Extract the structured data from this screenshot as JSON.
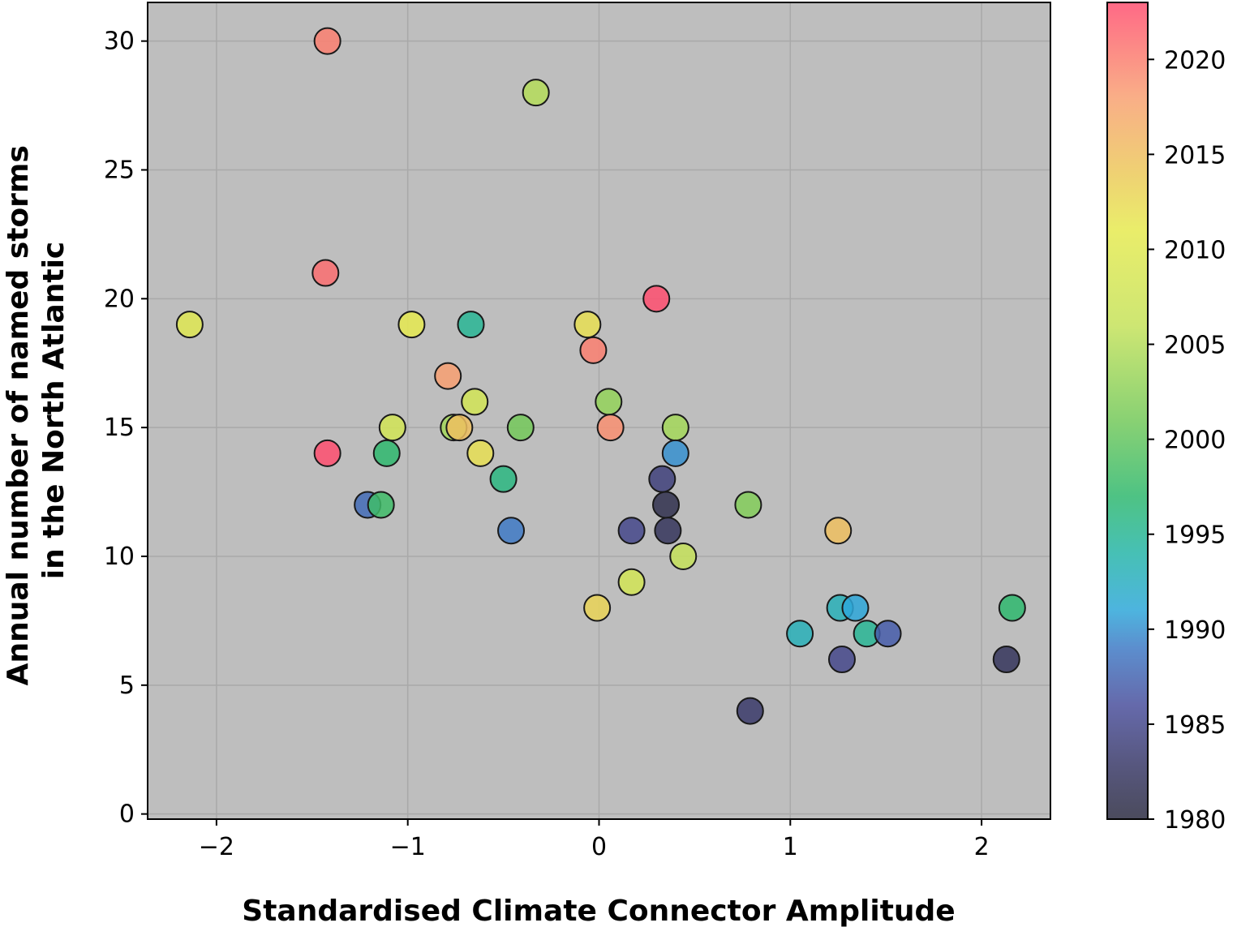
{
  "chart_data": {
    "type": "scatter",
    "xlabel": "Standardised Climate Connector Amplitude",
    "ylabel_lines": [
      "Annual number of named storms",
      "in the North Atlantic"
    ],
    "xlim": [
      -2.36,
      2.36
    ],
    "ylim": [
      -0.2,
      31.5
    ],
    "xticks": [
      -2,
      -1,
      0,
      1,
      2
    ],
    "xtick_labels": [
      "−2",
      "−1",
      "0",
      "1",
      "2"
    ],
    "yticks": [
      0,
      5,
      10,
      15,
      20,
      25,
      30
    ],
    "ytick_labels": [
      "0",
      "5",
      "10",
      "15",
      "20",
      "25",
      "30"
    ],
    "grid": true,
    "plot_background": "#bebebe",
    "gridline_color": "#a9a9a9",
    "marker_edge_color": "#1a1a1a",
    "colorbar": {
      "range": [
        1980,
        2023
      ],
      "ticks": [
        1980,
        1985,
        1990,
        1995,
        2000,
        2005,
        2010,
        2015,
        2020
      ],
      "tick_labels": [
        "1980",
        "1985",
        "1990",
        "1995",
        "2000",
        "2005",
        "2010",
        "2015",
        "2020"
      ],
      "color_stops": [
        {
          "year": 1980,
          "color": "#2b2b40"
        },
        {
          "year": 1983,
          "color": "#3a3a6a"
        },
        {
          "year": 1986,
          "color": "#4a4f9c"
        },
        {
          "year": 1989,
          "color": "#3f7ac5"
        },
        {
          "year": 1991,
          "color": "#2ea7d9"
        },
        {
          "year": 1994,
          "color": "#26b5a8"
        },
        {
          "year": 1997,
          "color": "#2fb86e"
        },
        {
          "year": 2001,
          "color": "#74c95a"
        },
        {
          "year": 2006,
          "color": "#c5e25a"
        },
        {
          "year": 2011,
          "color": "#e6ea50"
        },
        {
          "year": 2014,
          "color": "#ecc95a"
        },
        {
          "year": 2018,
          "color": "#f8a072"
        },
        {
          "year": 2023,
          "color": "#ff4f70"
        }
      ]
    },
    "points": [
      {
        "x": -1.42,
        "y": 30,
        "year": 2020
      },
      {
        "x": -0.33,
        "y": 28,
        "year": 2005
      },
      {
        "x": -1.43,
        "y": 21,
        "year": 2021
      },
      {
        "x": -1.42,
        "y": 14,
        "year": 2023
      },
      {
        "x": -2.14,
        "y": 19,
        "year": 2010
      },
      {
        "x": -0.98,
        "y": 19,
        "year": 2011
      },
      {
        "x": -0.67,
        "y": 19,
        "year": 1995
      },
      {
        "x": -0.06,
        "y": 19,
        "year": 2012
      },
      {
        "x": -0.03,
        "y": 18,
        "year": 2020
      },
      {
        "x": 0.3,
        "y": 20,
        "year": 2023
      },
      {
        "x": -0.79,
        "y": 17,
        "year": 2018
      },
      {
        "x": -0.65,
        "y": 16,
        "year": 2008
      },
      {
        "x": 0.05,
        "y": 16,
        "year": 2003
      },
      {
        "x": -1.08,
        "y": 15,
        "year": 2008
      },
      {
        "x": -0.76,
        "y": 15,
        "year": 2004
      },
      {
        "x": -0.73,
        "y": 15,
        "year": 2015
      },
      {
        "x": -0.41,
        "y": 15,
        "year": 2001
      },
      {
        "x": 0.06,
        "y": 15,
        "year": 2019
      },
      {
        "x": 0.4,
        "y": 15,
        "year": 2004
      },
      {
        "x": -1.11,
        "y": 14,
        "year": 1997
      },
      {
        "x": -0.62,
        "y": 14,
        "year": 2012
      },
      {
        "x": 0.4,
        "y": 14,
        "year": 1990
      },
      {
        "x": -0.5,
        "y": 13,
        "year": 1996
      },
      {
        "x": 0.33,
        "y": 13,
        "year": 1984
      },
      {
        "x": -1.21,
        "y": 12,
        "year": 1988
      },
      {
        "x": -1.14,
        "y": 12,
        "year": 1998
      },
      {
        "x": 0.35,
        "y": 12,
        "year": 1981
      },
      {
        "x": 0.78,
        "y": 12,
        "year": 2002
      },
      {
        "x": -0.46,
        "y": 11,
        "year": 1989
      },
      {
        "x": 0.17,
        "y": 11,
        "year": 1985
      },
      {
        "x": 0.36,
        "y": 11,
        "year": 1982
      },
      {
        "x": 1.25,
        "y": 11,
        "year": 2015
      },
      {
        "x": 0.44,
        "y": 10,
        "year": 2006
      },
      {
        "x": 0.17,
        "y": 9,
        "year": 2008
      },
      {
        "x": -0.01,
        "y": 8,
        "year": 2013
      },
      {
        "x": 1.26,
        "y": 8,
        "year": 1993
      },
      {
        "x": 1.34,
        "y": 8,
        "year": 1991
      },
      {
        "x": 2.16,
        "y": 8,
        "year": 1997
      },
      {
        "x": 1.05,
        "y": 7,
        "year": 1993
      },
      {
        "x": 1.4,
        "y": 7,
        "year": 1995
      },
      {
        "x": 1.51,
        "y": 7,
        "year": 1987
      },
      {
        "x": 1.27,
        "y": 6,
        "year": 1985
      },
      {
        "x": 2.13,
        "y": 6,
        "year": 1982
      },
      {
        "x": 0.79,
        "y": 4,
        "year": 1983
      }
    ]
  }
}
